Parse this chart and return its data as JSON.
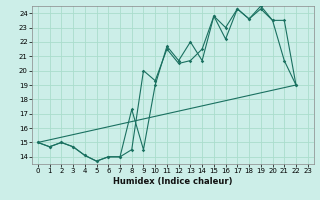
{
  "background_color": "#cceee8",
  "grid_color": "#aaddcc",
  "line_color": "#1a7060",
  "xlabel": "Humidex (Indice chaleur)",
  "xlim": [
    -0.5,
    23.5
  ],
  "ylim": [
    13.5,
    24.5
  ],
  "xticks": [
    0,
    1,
    2,
    3,
    4,
    5,
    6,
    7,
    8,
    9,
    10,
    11,
    12,
    13,
    14,
    15,
    16,
    17,
    18,
    19,
    20,
    21,
    22,
    23
  ],
  "yticks": [
    14,
    15,
    16,
    17,
    18,
    19,
    20,
    21,
    22,
    23,
    24
  ],
  "line1_x": [
    0,
    1,
    2,
    3,
    4,
    5,
    6,
    7,
    8,
    9,
    10,
    11,
    12,
    13,
    14,
    15,
    16,
    17,
    18,
    19,
    20,
    21,
    22
  ],
  "line1_y": [
    15.0,
    14.7,
    15.0,
    14.7,
    14.1,
    13.7,
    14.0,
    14.0,
    14.5,
    20.0,
    19.3,
    21.5,
    20.5,
    20.7,
    21.5,
    23.8,
    23.0,
    24.3,
    23.6,
    24.3,
    23.5,
    20.7,
    19.0
  ],
  "line2_x": [
    0,
    1,
    2,
    3,
    4,
    5,
    6,
    7,
    8,
    9,
    10,
    11,
    12,
    13,
    14,
    15,
    16,
    17,
    18,
    19,
    20,
    21,
    22
  ],
  "line2_y": [
    15.0,
    14.7,
    15.0,
    14.7,
    14.1,
    13.7,
    14.0,
    14.0,
    17.3,
    14.5,
    19.0,
    21.7,
    20.7,
    22.0,
    20.7,
    23.8,
    22.2,
    24.3,
    23.6,
    24.5,
    23.5,
    23.5,
    19.0
  ],
  "line3_x": [
    0,
    22
  ],
  "line3_y": [
    15.0,
    19.0
  ]
}
